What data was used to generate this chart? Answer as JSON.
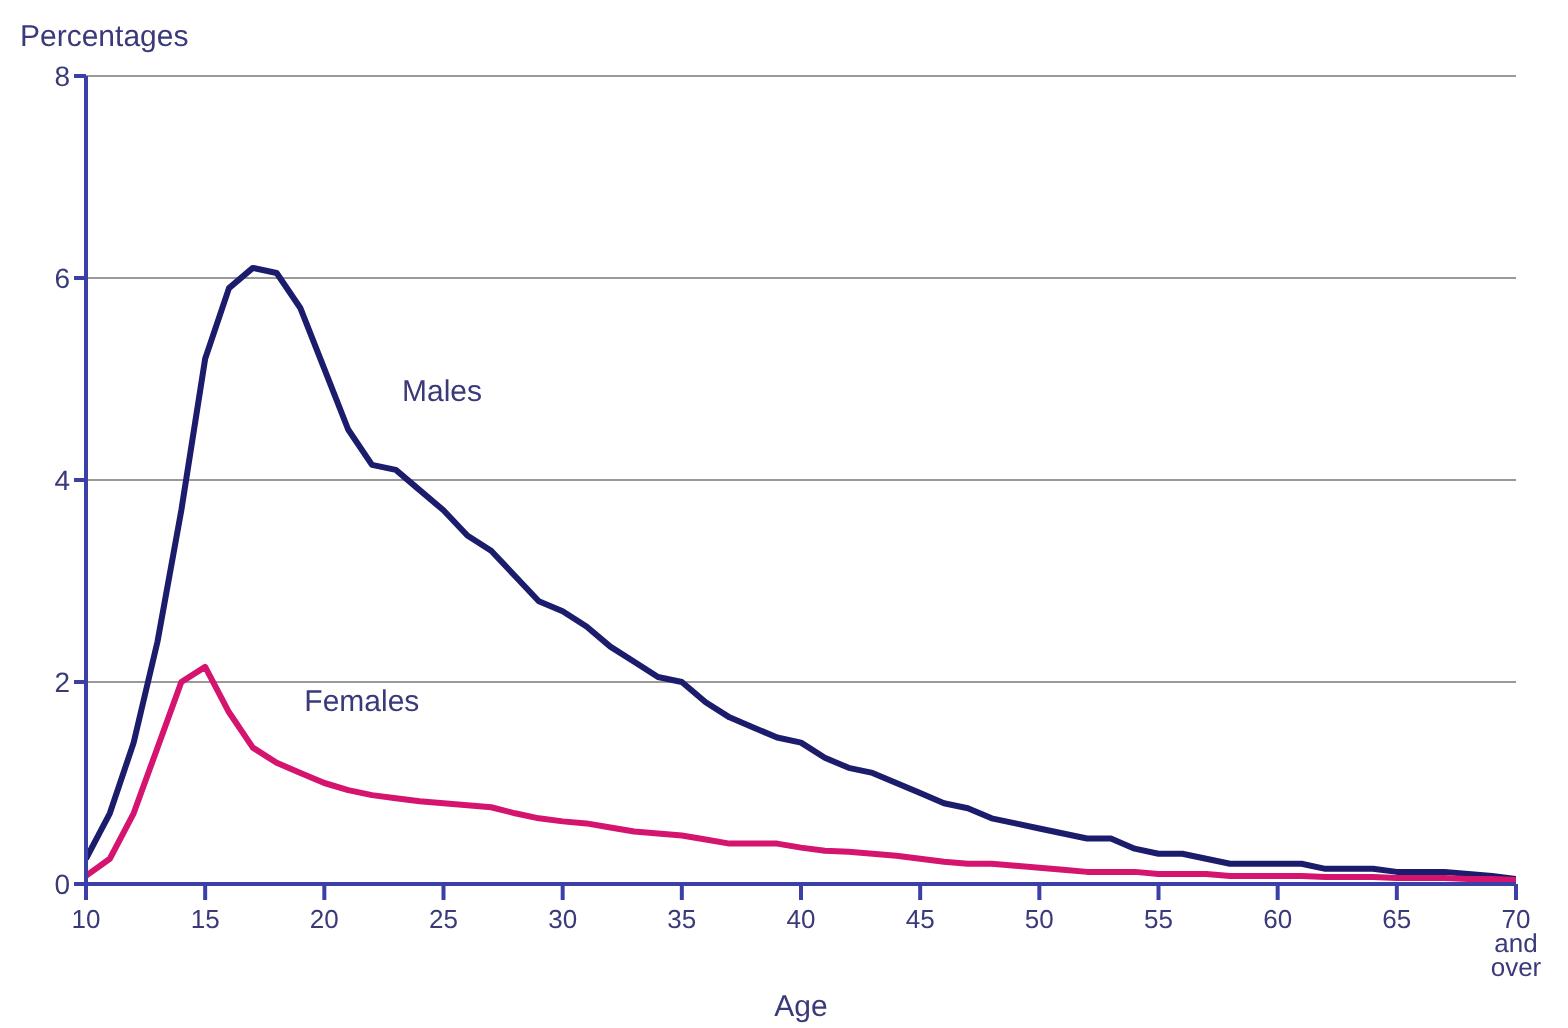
{
  "chart_data": {
    "type": "line",
    "ylabel": "Percentages",
    "xlabel": "Age",
    "x": [
      10,
      11,
      12,
      13,
      14,
      15,
      16,
      17,
      18,
      19,
      20,
      21,
      22,
      23,
      24,
      25,
      26,
      27,
      28,
      29,
      30,
      31,
      32,
      33,
      34,
      35,
      36,
      37,
      38,
      39,
      40,
      41,
      42,
      43,
      44,
      45,
      46,
      47,
      48,
      49,
      50,
      51,
      52,
      53,
      54,
      55,
      56,
      57,
      58,
      59,
      60,
      61,
      62,
      63,
      64,
      65,
      66,
      67,
      68,
      69,
      70
    ],
    "series": [
      {
        "name": "Males",
        "color": "#1c1c6c",
        "values": [
          0.25,
          0.7,
          1.4,
          2.4,
          3.7,
          5.2,
          5.9,
          6.1,
          6.05,
          5.7,
          5.1,
          4.5,
          4.15,
          4.1,
          3.9,
          3.7,
          3.45,
          3.3,
          3.05,
          2.8,
          2.7,
          2.55,
          2.35,
          2.2,
          2.05,
          2.0,
          1.8,
          1.65,
          1.55,
          1.45,
          1.4,
          1.25,
          1.15,
          1.1,
          1.0,
          0.9,
          0.8,
          0.75,
          0.65,
          0.6,
          0.55,
          0.5,
          0.45,
          0.45,
          0.35,
          0.3,
          0.3,
          0.25,
          0.2,
          0.2,
          0.2,
          0.2,
          0.15,
          0.15,
          0.15,
          0.12,
          0.12,
          0.12,
          0.1,
          0.08,
          0.05
        ]
      },
      {
        "name": "Females",
        "color": "#d4146e",
        "values": [
          0.08,
          0.25,
          0.7,
          1.35,
          2.0,
          2.15,
          1.7,
          1.35,
          1.2,
          1.1,
          1.0,
          0.93,
          0.88,
          0.85,
          0.82,
          0.8,
          0.78,
          0.76,
          0.7,
          0.65,
          0.62,
          0.6,
          0.56,
          0.52,
          0.5,
          0.48,
          0.44,
          0.4,
          0.4,
          0.4,
          0.36,
          0.33,
          0.32,
          0.3,
          0.28,
          0.25,
          0.22,
          0.2,
          0.2,
          0.18,
          0.16,
          0.14,
          0.12,
          0.12,
          0.12,
          0.1,
          0.1,
          0.1,
          0.08,
          0.08,
          0.08,
          0.08,
          0.07,
          0.07,
          0.07,
          0.06,
          0.06,
          0.06,
          0.05,
          0.05,
          0.04
        ]
      }
    ],
    "xlim": [
      10,
      70
    ],
    "xticks": [
      10,
      15,
      20,
      25,
      30,
      35,
      40,
      45,
      50,
      55,
      60,
      65,
      {
        "value": 70,
        "label": "70 and over"
      }
    ],
    "ylim": [
      0,
      8
    ],
    "yticks": [
      0,
      2,
      4,
      6,
      8
    ],
    "grid": "y",
    "legend": false,
    "marker": "none",
    "line_style": "solid"
  }
}
